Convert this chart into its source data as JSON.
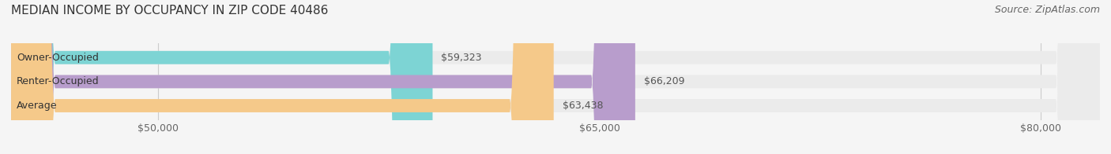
{
  "title": "MEDIAN INCOME BY OCCUPANCY IN ZIP CODE 40486",
  "source": "Source: ZipAtlas.com",
  "categories": [
    "Owner-Occupied",
    "Renter-Occupied",
    "Average"
  ],
  "values": [
    59323,
    66209,
    63438
  ],
  "bar_colors": [
    "#7dd4d4",
    "#b89dcc",
    "#f5c98a"
  ],
  "bar_bg_color": "#ebebeb",
  "xlim": [
    45000,
    82000
  ],
  "xticks": [
    50000,
    65000,
    80000
  ],
  "xtick_labels": [
    "$50,000",
    "$65,000",
    "$80,000"
  ],
  "value_labels": [
    "$59,323",
    "$66,209",
    "$63,438"
  ],
  "title_fontsize": 11,
  "source_fontsize": 9,
  "label_fontsize": 9,
  "bar_height": 0.55,
  "background_color": "#f5f5f5"
}
